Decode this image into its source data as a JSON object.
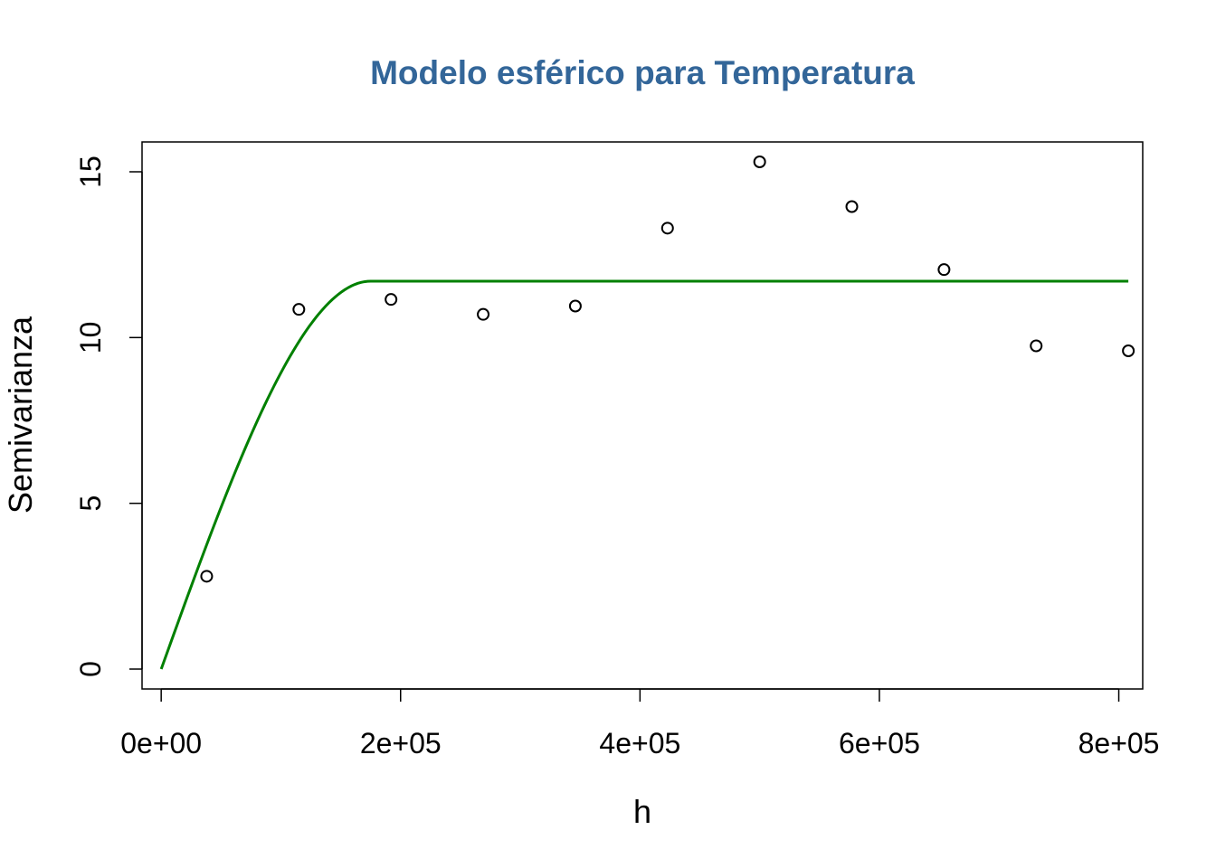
{
  "chart_data": {
    "type": "scatter",
    "title": "Modelo esférico para Temperatura",
    "title_color": "#336699",
    "xlabel": "h",
    "ylabel": "Semivarianza",
    "xlim": [
      -16000,
      820000
    ],
    "ylim": [
      -0.6,
      15.9
    ],
    "x_ticks": [
      0,
      200000,
      400000,
      600000,
      800000
    ],
    "x_tick_labels": [
      "0e+00",
      "2e+05",
      "4e+05",
      "6e+05",
      "8e+05"
    ],
    "y_ticks": [
      0,
      5,
      10,
      15
    ],
    "y_tick_labels": [
      "0",
      "5",
      "10",
      "15"
    ],
    "grid": false,
    "series": [
      {
        "kind": "points",
        "color": "#000000",
        "x": [
          38000,
          115000,
          192000,
          269000,
          346000,
          423000,
          500000,
          577000,
          654000,
          731000,
          808000
        ],
        "y": [
          2.8,
          10.85,
          11.15,
          10.7,
          10.95,
          13.3,
          15.3,
          13.95,
          12.05,
          9.75,
          9.6
        ]
      },
      {
        "kind": "model-line",
        "model": "spherical",
        "color": "#008000",
        "nugget": 0,
        "sill": 11.7,
        "range": 175000,
        "x_range": [
          0,
          808000
        ]
      }
    ]
  }
}
